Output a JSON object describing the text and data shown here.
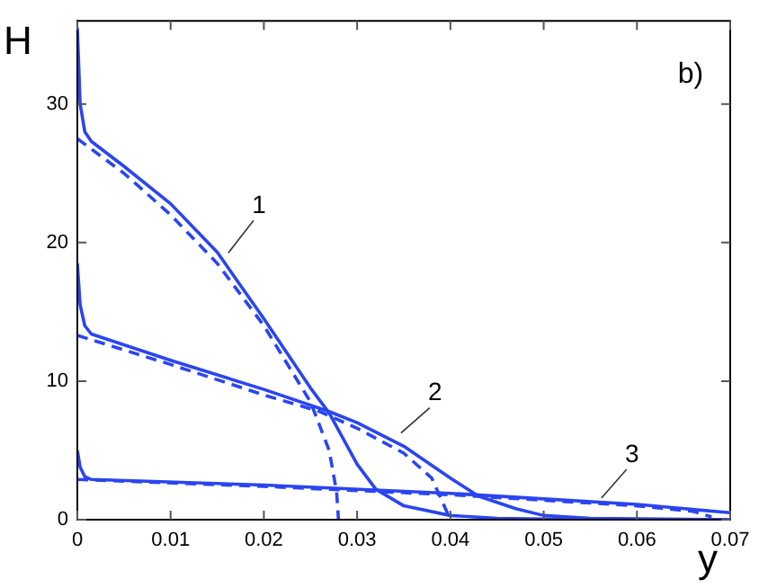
{
  "chart_data": {
    "type": "line",
    "xlabel": "y",
    "ylabel": "H",
    "xlim": [
      0,
      0.07
    ],
    "xticks": [
      0,
      0.01,
      0.02,
      0.03,
      0.04,
      0.05,
      0.06,
      0.07
    ],
    "ylim": [
      0,
      36
    ],
    "yticks": [
      0,
      10,
      20,
      30
    ],
    "grid": false,
    "legend": false,
    "marker": "none",
    "series": [
      {
        "color": "#2a45f0",
        "line_style": "solid",
        "x": [
          0,
          0.0003,
          0.0008,
          0.0015,
          0.005,
          0.01,
          0.015,
          0.02,
          0.025,
          0.027,
          0.03,
          0.032,
          0.035,
          0.04,
          0.045,
          0.05,
          0.06,
          0.07
        ],
        "values": [
          35.5,
          30,
          28,
          27.3,
          25.5,
          22.8,
          19.3,
          14.5,
          9.5,
          7.7,
          4,
          2.2,
          1,
          0.3,
          0.1,
          0.05,
          0,
          0
        ]
      },
      {
        "color": "#2a45f0",
        "line_style": "dashed",
        "x": [
          0,
          0.005,
          0.01,
          0.015,
          0.02,
          0.025,
          0.027,
          0.0278,
          0.028
        ],
        "values": [
          27.5,
          25,
          22,
          18.5,
          14,
          8.5,
          5,
          2,
          0
        ]
      },
      {
        "color": "#2a45f0",
        "line_style": "solid",
        "x": [
          0,
          0.0003,
          0.0008,
          0.0015,
          0.01,
          0.02,
          0.027,
          0.03,
          0.035,
          0.04,
          0.043,
          0.047,
          0.05,
          0.055,
          0.07
        ],
        "values": [
          18.5,
          15.5,
          14,
          13.4,
          11.5,
          9.4,
          7.8,
          7,
          5.3,
          3,
          1.7,
          0.8,
          0.3,
          0.1,
          0
        ]
      },
      {
        "color": "#2a45f0",
        "line_style": "dashed",
        "x": [
          0,
          0.01,
          0.02,
          0.026,
          0.03,
          0.035,
          0.038,
          0.039,
          0.04
        ],
        "values": [
          13.3,
          11.2,
          9,
          7.8,
          6.6,
          4.8,
          3,
          1.5,
          0
        ]
      },
      {
        "color": "#2a45f0",
        "line_style": "solid",
        "x": [
          0,
          0.0003,
          0.0008,
          0.0015,
          0.02,
          0.04,
          0.05,
          0.06,
          0.07
        ],
        "values": [
          5,
          3.8,
          3.1,
          2.9,
          2.5,
          1.9,
          1.5,
          1.1,
          0.5
        ]
      },
      {
        "color": "#2a45f0",
        "line_style": "dashed",
        "x": [
          0,
          0.02,
          0.04,
          0.06,
          0.066,
          0.068
        ],
        "values": [
          2.9,
          2.4,
          1.8,
          1,
          0.6,
          0.2
        ]
      }
    ],
    "annotations": [
      {
        "text": "1",
        "x": 0.016,
        "y": 19
      },
      {
        "text": "2",
        "x": 0.0345,
        "y": 6
      },
      {
        "text": "3",
        "x": 0.056,
        "y": 1.3
      },
      "b)"
    ]
  }
}
